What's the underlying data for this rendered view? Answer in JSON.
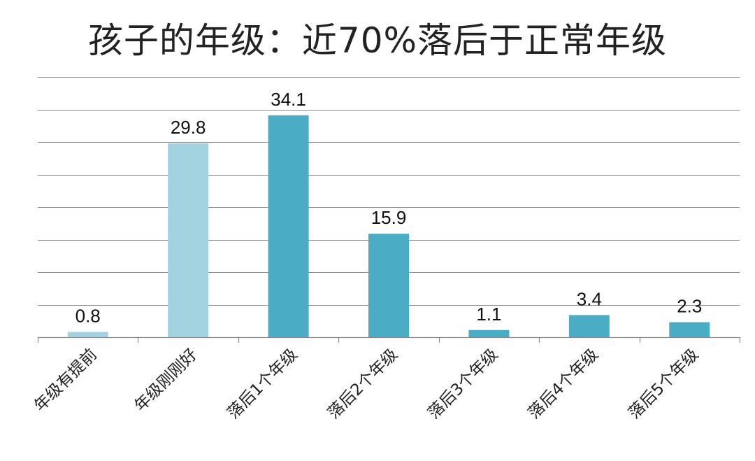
{
  "chart_data": {
    "type": "bar",
    "title": "孩子的年级：近70%落后于正常年级",
    "xlabel": "",
    "ylabel": "",
    "categories": [
      "年级有提前",
      "年级刚刚好",
      "落后1个年级",
      "落后2个年级",
      "落后3个年级",
      "落后4个年级",
      "落后5个年级"
    ],
    "values": [
      0.8,
      29.8,
      34.1,
      15.9,
      1.1,
      3.4,
      2.3
    ],
    "data_labels": [
      "0.8",
      "29.8",
      "34.1",
      "15.9",
      "1.1",
      "3.4",
      "2.3"
    ],
    "ylim": [
      0,
      40
    ],
    "grid": true,
    "y_tick_labels_shown": false,
    "colors": [
      "#a3d3e1",
      "#a3d3e1",
      "#4bacc6",
      "#4bacc6",
      "#4bacc6",
      "#4bacc6",
      "#4bacc6"
    ]
  }
}
